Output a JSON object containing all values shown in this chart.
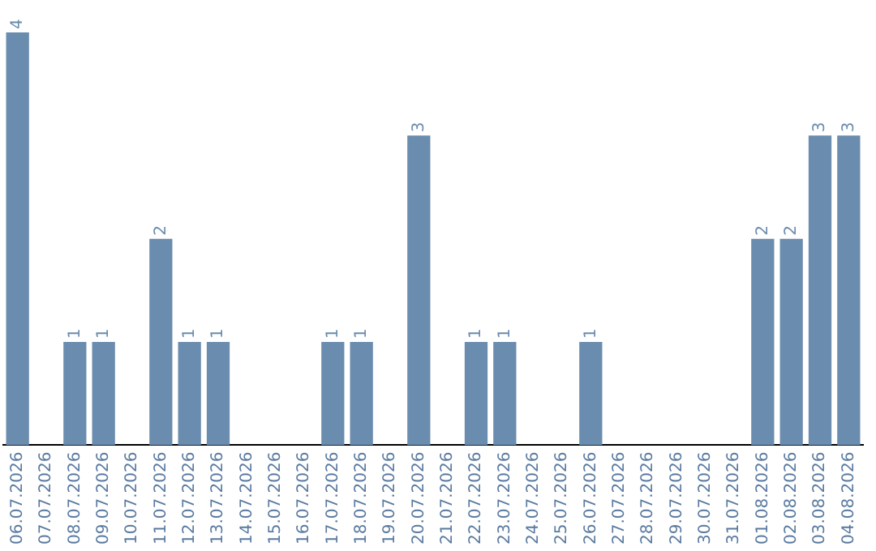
{
  "chart_data": {
    "type": "bar",
    "categories": [
      "06.07.2026",
      "07.07.2026",
      "08.07.2026",
      "09.07.2026",
      "10.07.2026",
      "11.07.2026",
      "12.07.2026",
      "13.07.2026",
      "14.07.2026",
      "15.07.2026",
      "16.07.2026",
      "17.07.2026",
      "18.07.2026",
      "19.07.2026",
      "20.07.2026",
      "21.07.2026",
      "22.07.2026",
      "23.07.2026",
      "24.07.2026",
      "25.07.2026",
      "26.07.2026",
      "27.07.2026",
      "28.07.2026",
      "29.07.2026",
      "30.07.2026",
      "31.07.2026",
      "01.08.2026",
      "02.08.2026",
      "03.08.2026",
      "04.08.2026"
    ],
    "values": [
      4,
      0,
      1,
      1,
      0,
      2,
      1,
      1,
      0,
      0,
      0,
      1,
      1,
      0,
      3,
      0,
      1,
      1,
      0,
      0,
      1,
      0,
      0,
      0,
      0,
      0,
      2,
      2,
      3,
      3
    ],
    "value_labels": [
      "4",
      null,
      "1",
      "1",
      null,
      "2",
      "1",
      "1",
      null,
      null,
      null,
      "1",
      "1",
      null,
      "3",
      null,
      "1",
      "1",
      null,
      null,
      "1",
      null,
      null,
      null,
      null,
      null,
      "2",
      "2",
      "3",
      "3"
    ],
    "color": "#6a8cae",
    "grid": false,
    "legend": false,
    "tick_labels": "x"
  }
}
